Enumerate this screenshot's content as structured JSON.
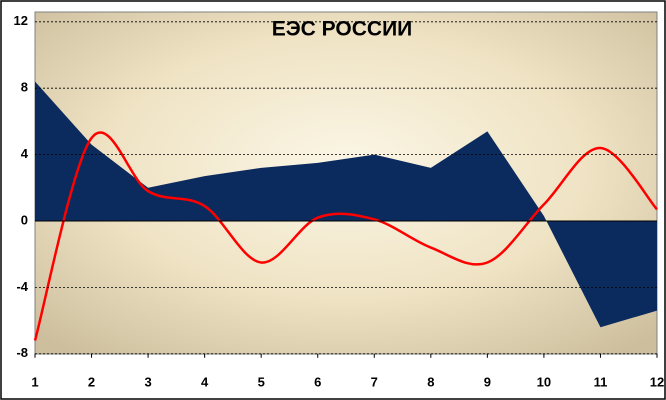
{
  "chart_data": {
    "type": "combo",
    "title": "ЕЭС РОССИИ",
    "x": [
      1,
      2,
      3,
      4,
      5,
      6,
      7,
      8,
      9,
      10,
      11,
      12
    ],
    "series": [
      {
        "type": "area",
        "color": "#0b2b5e",
        "values": [
          8.4,
          4.6,
          2.0,
          2.7,
          3.2,
          3.5,
          4.0,
          3.2,
          5.4,
          0.3,
          -6.4,
          -5.4
        ]
      },
      {
        "type": "line",
        "color": "#ff0000",
        "values": [
          -7.2,
          5.0,
          1.8,
          0.9,
          -2.5,
          0.2,
          0.1,
          -1.6,
          -2.5,
          1.0,
          4.4,
          0.7
        ]
      }
    ],
    "xlim": [
      1,
      12
    ],
    "xticks": [
      1,
      2,
      3,
      4,
      5,
      6,
      7,
      8,
      9,
      10,
      11,
      12
    ],
    "ylim": [
      -8,
      12
    ],
    "yticks": [
      -8,
      -4,
      0,
      4,
      8,
      12
    ],
    "grid": true
  }
}
